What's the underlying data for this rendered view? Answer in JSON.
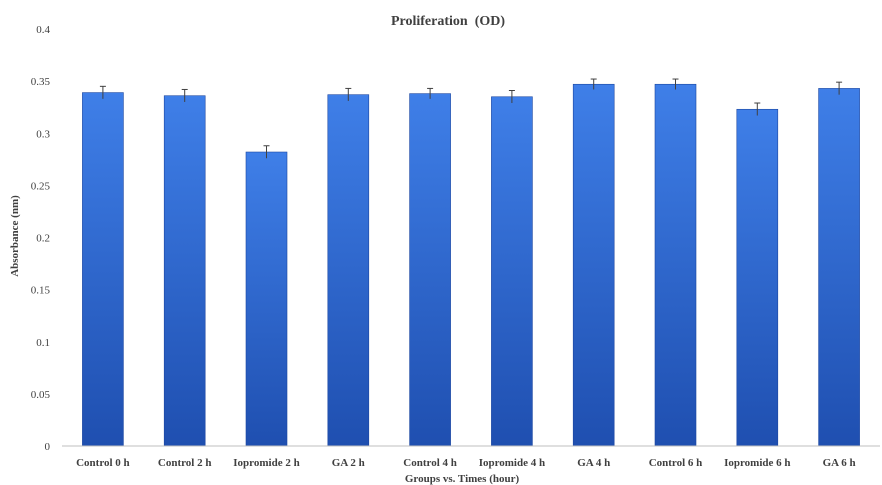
{
  "chart_data": {
    "type": "bar",
    "title": "Proliferation  (OD)",
    "xlabel": "Groups vs. Times (hour)",
    "ylabel": "Absorbance (nm)",
    "ylim": [
      0,
      0.4
    ],
    "yticks": [
      "0",
      "0.05",
      "0.1",
      "0.15",
      "0.2",
      "0.25",
      "0.3",
      "0.35",
      "0.4"
    ],
    "grid": false,
    "legend": "none",
    "error_bars": true,
    "categories": [
      "Control 0 h",
      "Control 2 h",
      "Iopromide 2 h",
      "GA 2 h",
      "Control 4 h",
      "Iopromide 4 h",
      "GA 4 h",
      "Control 6 h",
      "Iopromide 6 h",
      "GA 6 h"
    ],
    "values": [
      0.339,
      0.336,
      0.282,
      0.337,
      0.338,
      0.335,
      0.347,
      0.347,
      0.323,
      0.343
    ],
    "errors": [
      0.006,
      0.006,
      0.006,
      0.006,
      0.005,
      0.006,
      0.005,
      0.005,
      0.006,
      0.006
    ],
    "colors": {
      "bar_top": "#3f7fe8",
      "bar_bottom": "#1f4fb0",
      "bar_edge": "#1c46a0",
      "axis": "#bfbfbf",
      "text": "#404040",
      "error_bar": "#404040"
    }
  }
}
